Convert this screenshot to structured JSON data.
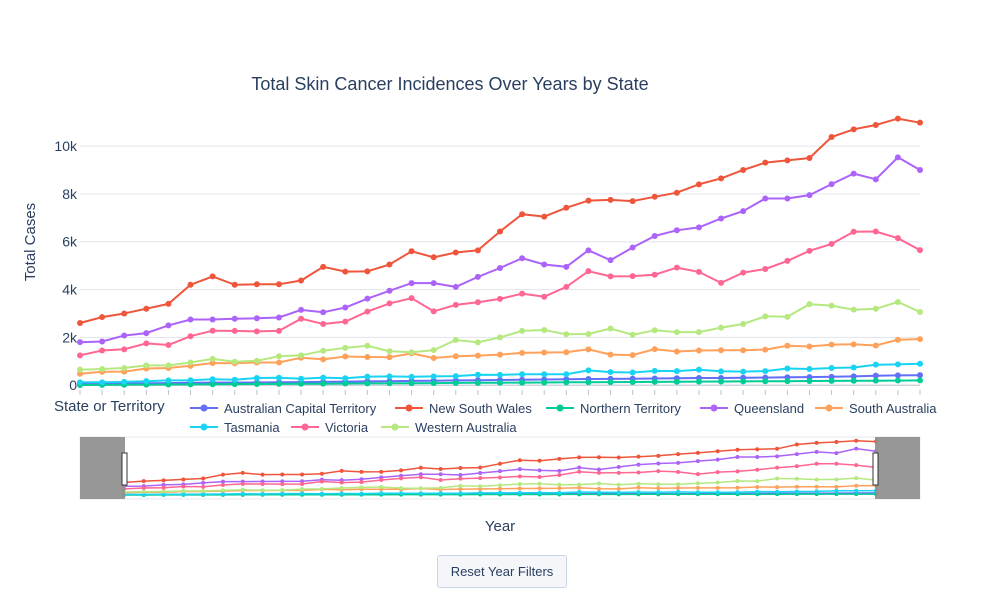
{
  "chart_data": {
    "type": "line",
    "title": "Total Skin Cancer Incidences Over Years by State",
    "xlabel": "Year",
    "ylabel": "Total Cases",
    "ylim": [
      -200,
      11300
    ],
    "yticks": [
      0,
      2000,
      4000,
      6000,
      8000,
      10000
    ],
    "ytick_labels": [
      "0",
      "2k",
      "4k",
      "6k",
      "8k",
      "10k"
    ],
    "x_points": 39,
    "x_tick_labels_visible": false,
    "grid": true,
    "legend_title": "State or Territory",
    "legend_position": "bottom",
    "range_slider": true,
    "series": [
      {
        "name": "Australian Capital Territory",
        "color": "#636efa",
        "values": [
          60,
          60,
          70,
          80,
          90,
          100,
          110,
          110,
          115,
          120,
          130,
          140,
          150,
          160,
          170,
          180,
          190,
          200,
          210,
          220,
          230,
          240,
          250,
          260,
          265,
          270,
          280,
          290,
          300,
          300,
          310,
          320,
          330,
          340,
          350,
          370,
          400,
          410,
          420
        ]
      },
      {
        "name": "New South Wales",
        "color": "#ef553b",
        "values": [
          2600,
          2850,
          3000,
          3200,
          3400,
          4200,
          4550,
          4200,
          4220,
          4220,
          4380,
          4950,
          4750,
          4760,
          5050,
          5600,
          5350,
          5550,
          5640,
          6430,
          7150,
          7050,
          7420,
          7720,
          7750,
          7700,
          7880,
          8050,
          8400,
          8650,
          9000,
          9310,
          9400,
          9500,
          10380,
          10700,
          10880,
          11150,
          10980
        ]
      },
      {
        "name": "Northern Territory",
        "color": "#00cc96",
        "values": [
          10,
          15,
          20,
          25,
          30,
          35,
          40,
          45,
          50,
          55,
          60,
          65,
          70,
          75,
          80,
          85,
          90,
          95,
          100,
          105,
          110,
          115,
          120,
          125,
          130,
          135,
          140,
          145,
          150,
          155,
          160,
          165,
          170,
          175,
          180,
          185,
          190,
          195,
          200
        ]
      },
      {
        "name": "Queensland",
        "color": "#ab63fa",
        "values": [
          1800,
          1830,
          2080,
          2180,
          2500,
          2750,
          2750,
          2780,
          2800,
          2830,
          3150,
          3050,
          3250,
          3620,
          3950,
          4270,
          4270,
          4110,
          4530,
          4900,
          5310,
          5050,
          4950,
          5640,
          5230,
          5760,
          6240,
          6480,
          6600,
          6970,
          7280,
          7810,
          7810,
          7950,
          8410,
          8850,
          8610,
          9530,
          9000
        ]
      },
      {
        "name": "South Australia",
        "color": "#ffa15a",
        "values": [
          480,
          560,
          570,
          700,
          720,
          810,
          930,
          920,
          950,
          950,
          1150,
          1080,
          1200,
          1180,
          1170,
          1330,
          1140,
          1210,
          1240,
          1280,
          1350,
          1370,
          1380,
          1500,
          1280,
          1260,
          1510,
          1410,
          1450,
          1460,
          1460,
          1490,
          1650,
          1620,
          1700,
          1710,
          1660,
          1900,
          1930
        ]
      },
      {
        "name": "Tasmania",
        "color": "#19d3f3",
        "values": [
          120,
          120,
          140,
          170,
          200,
          210,
          250,
          230,
          300,
          310,
          270,
          320,
          290,
          360,
          370,
          350,
          370,
          380,
          440,
          430,
          460,
          460,
          460,
          620,
          550,
          530,
          600,
          590,
          650,
          580,
          570,
          590,
          700,
          680,
          720,
          740,
          860,
          870,
          900
        ]
      },
      {
        "name": "Victoria",
        "color": "#ff6692",
        "values": [
          1250,
          1450,
          1500,
          1750,
          1680,
          2050,
          2280,
          2270,
          2250,
          2270,
          2780,
          2560,
          2660,
          3080,
          3420,
          3640,
          3090,
          3360,
          3470,
          3610,
          3830,
          3700,
          4110,
          4770,
          4550,
          4560,
          4620,
          4920,
          4740,
          4280,
          4710,
          4860,
          5200,
          5620,
          5910,
          6420,
          6430,
          6150,
          5650
        ]
      },
      {
        "name": "Western Australia",
        "color": "#b6e880",
        "values": [
          650,
          680,
          720,
          830,
          830,
          950,
          1100,
          980,
          1020,
          1210,
          1250,
          1440,
          1560,
          1650,
          1420,
          1380,
          1470,
          1890,
          1790,
          2000,
          2270,
          2310,
          2130,
          2140,
          2370,
          2110,
          2300,
          2220,
          2220,
          2410,
          2560,
          2880,
          2860,
          3390,
          3330,
          3160,
          3200,
          3480,
          3060
        ]
      }
    ]
  },
  "controls": {
    "reset_label": "Reset Year Filters"
  }
}
